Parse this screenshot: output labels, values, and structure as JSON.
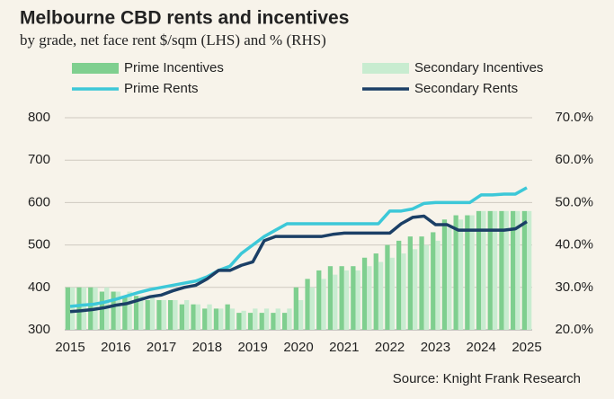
{
  "chart_data": {
    "type": "bar-line",
    "title": "Melbourne CBD rents and incentives",
    "subtitle": "by grade, net face rent $/sqm (LHS) and % (RHS)",
    "source": "Source: Knight Frank Research",
    "categories": [
      "2015",
      null,
      null,
      null,
      "2016",
      null,
      null,
      null,
      "2017",
      null,
      null,
      null,
      "2018",
      null,
      null,
      null,
      "2019",
      null,
      null,
      null,
      "2020",
      null,
      null,
      null,
      "2021",
      null,
      null,
      null,
      "2022",
      null,
      null,
      null,
      "2023",
      null,
      null,
      null,
      "2024",
      null,
      null,
      null,
      "2025"
    ],
    "ylim": [
      300,
      800
    ],
    "yticks": [
      300,
      400,
      500,
      600,
      700,
      800
    ],
    "y2lim": [
      20,
      70
    ],
    "y2ticks": [
      {
        "value": 20,
        "label": "20.0%"
      },
      {
        "value": 30,
        "label": "30.0%"
      },
      {
        "value": 40,
        "label": "40.0%"
      },
      {
        "value": 50,
        "label": "50.0%"
      },
      {
        "value": 60,
        "label": "60.0%"
      },
      {
        "value": 70,
        "label": "70.0%"
      }
    ],
    "grid": true,
    "series": [
      {
        "name": "Prime Incentives",
        "kind": "bar",
        "axis": "y2",
        "color": "#7fcf8f",
        "values": [
          30,
          30,
          30,
          29,
          29,
          28,
          28,
          27,
          27,
          27,
          26,
          26,
          25,
          25,
          26,
          24,
          24,
          24,
          24,
          24,
          30,
          32,
          34,
          35,
          35,
          35,
          37,
          38,
          40,
          41,
          42,
          42,
          43,
          46,
          47,
          47,
          48,
          48,
          48,
          48,
          48
        ]
      },
      {
        "name": "Secondary Incentives",
        "kind": "bar",
        "axis": "y2",
        "color": "#c8ecd0",
        "values": [
          30,
          30,
          30,
          30,
          29,
          29,
          28,
          28,
          27,
          27,
          27,
          26,
          26,
          25,
          25,
          24.5,
          25,
          25,
          25,
          25,
          27,
          30,
          32,
          33,
          34,
          34,
          35,
          36,
          37,
          38,
          39,
          40,
          41,
          44,
          46,
          47,
          48,
          48,
          48,
          48,
          48
        ]
      },
      {
        "name": "Prime Rents",
        "kind": "line",
        "color": "#3cc8d8",
        "values": [
          355,
          358,
          360,
          365,
          372,
          380,
          388,
          395,
          400,
          405,
          410,
          415,
          425,
          440,
          450,
          480,
          500,
          520,
          535,
          550,
          550,
          550,
          550,
          550,
          550,
          550,
          550,
          550,
          580,
          580,
          585,
          598,
          600,
          600,
          600,
          600,
          618,
          618,
          620,
          620,
          635
        ]
      },
      {
        "name": "Secondary Rents",
        "kind": "line",
        "color": "#1b3f66",
        "values": [
          343,
          345,
          348,
          352,
          358,
          362,
          370,
          378,
          382,
          392,
          400,
          405,
          420,
          440,
          440,
          452,
          460,
          510,
          520,
          520,
          520,
          520,
          520,
          525,
          528,
          528,
          528,
          528,
          528,
          550,
          565,
          568,
          548,
          548,
          535,
          535,
          535,
          535,
          535,
          538,
          555
        ]
      }
    ]
  }
}
